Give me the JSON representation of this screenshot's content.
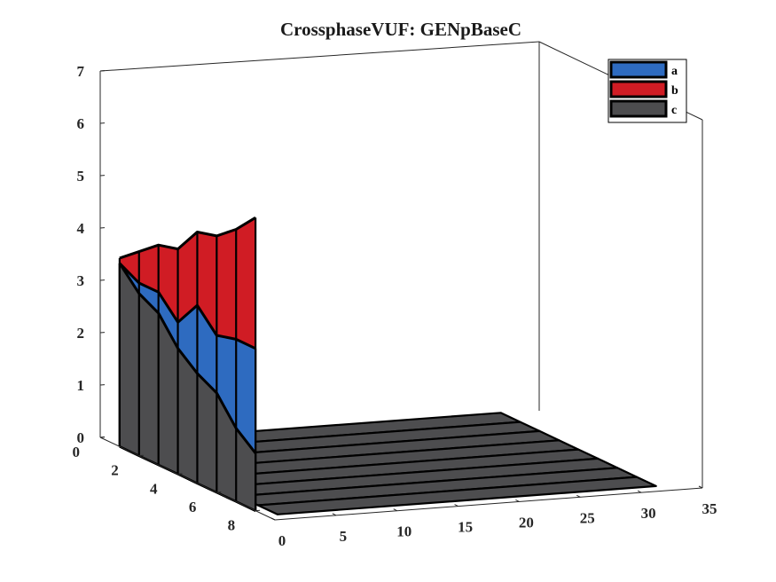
{
  "chart_data": {
    "type": "area",
    "subtype": "ribbon-3d",
    "title": "CrossphaseVUF: GENpBaseC",
    "xlabel": "",
    "ylabel": "",
    "zlabel": "",
    "x_ticks": [
      "0",
      "5",
      "10",
      "15",
      "20",
      "25",
      "30",
      "35"
    ],
    "y_ticks": [
      "0",
      "2",
      "4",
      "6",
      "8"
    ],
    "z_ticks": [
      "0",
      "1",
      "2",
      "3",
      "4",
      "5",
      "6",
      "7"
    ],
    "xlim": [
      0,
      35
    ],
    "ylim": [
      0,
      9
    ],
    "zlim": [
      0,
      7
    ],
    "grid": false,
    "legend_position": "top-right",
    "y": [
      1,
      2,
      3,
      4,
      5,
      6,
      7,
      8
    ],
    "x_zero_range": [
      1,
      32
    ],
    "series": [
      {
        "name": "b",
        "color": "#d01c24",
        "values": [
          3.6,
          3.9,
          4.2,
          4.3,
          4.8,
          4.9,
          5.2,
          5.6
        ]
      },
      {
        "name": "a",
        "color": "#2e6bc0",
        "values": [
          3.5,
          3.3,
          3.3,
          2.9,
          3.4,
          3.0,
          3.1,
          3.1
        ]
      },
      {
        "name": "c",
        "color": "#4d4d4f",
        "values": [
          3.5,
          3.1,
          2.9,
          2.4,
          2.1,
          1.9,
          1.4,
          1.1
        ]
      }
    ]
  }
}
